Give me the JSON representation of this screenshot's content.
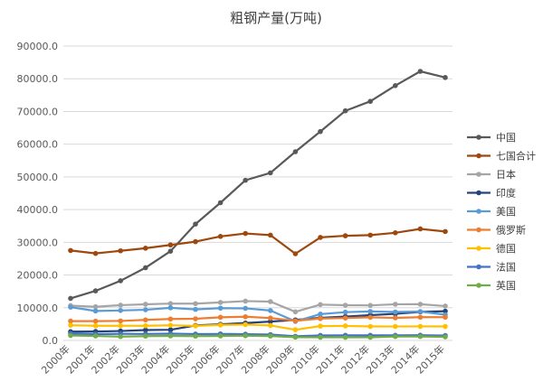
{
  "chart_data": {
    "type": "line",
    "title": "粗钢产量(万吨)",
    "x": [
      "2000年",
      "2001年",
      "2002年",
      "2003年",
      "2004年",
      "2005年",
      "2006年",
      "2007年",
      "2008年",
      "2009年",
      "2010年",
      "2011年",
      "2012年",
      "2013年",
      "2014年",
      "2015年"
    ],
    "y_ticks": [
      "0.0",
      "10000.0",
      "20000.0",
      "30000.0",
      "40000.0",
      "50000.0",
      "60000.0",
      "70000.0",
      "80000.0",
      "90000.0"
    ],
    "ylim": [
      0,
      90000
    ],
    "grid": true,
    "legend_position": "right",
    "series": [
      {
        "name": "中国",
        "color": "#595959",
        "values": [
          12850,
          15160,
          18240,
          22230,
          27280,
          35580,
          42100,
          48970,
          51230,
          57700,
          63870,
          70200,
          73100,
          77900,
          82270,
          80380
        ]
      },
      {
        "name": "七国合计",
        "color": "#9E480E",
        "values": [
          27500,
          26600,
          27400,
          28200,
          29200,
          30200,
          31800,
          32700,
          32200,
          26500,
          31500,
          32000,
          32200,
          32900,
          34100,
          33300
        ]
      },
      {
        "name": "日本",
        "color": "#A5A5A5",
        "values": [
          10640,
          10290,
          10780,
          11050,
          11270,
          11250,
          11620,
          12020,
          11870,
          8750,
          10960,
          10760,
          10720,
          11060,
          11070,
          10510
        ]
      },
      {
        "name": "印度",
        "color": "#264478",
        "values": [
          2690,
          2730,
          2880,
          3180,
          3260,
          4580,
          4930,
          5310,
          5770,
          6280,
          6900,
          7300,
          7730,
          8120,
          8730,
          8930
        ]
      },
      {
        "name": "美国",
        "color": "#5B9BD5",
        "values": [
          10180,
          9010,
          9160,
          9370,
          9970,
          9490,
          9860,
          9810,
          9140,
          5820,
          8050,
          8640,
          8870,
          8690,
          8830,
          7870
        ]
      },
      {
        "name": "俄罗斯",
        "color": "#ED7D31",
        "values": [
          5910,
          5900,
          5960,
          6280,
          6550,
          6620,
          7080,
          7240,
          6850,
          6000,
          6690,
          6850,
          7060,
          6910,
          7110,
          7110
        ]
      },
      {
        "name": "德国",
        "color": "#FFC000",
        "values": [
          4640,
          4480,
          4500,
          4480,
          4640,
          4450,
          4720,
          4850,
          4580,
          3270,
          4380,
          4430,
          4270,
          4260,
          4290,
          4270
        ]
      },
      {
        "name": "法国",
        "color": "#4472C4",
        "values": [
          2100,
          1930,
          2020,
          1980,
          2080,
          1950,
          1990,
          1920,
          1790,
          1280,
          1540,
          1570,
          1560,
          1570,
          1610,
          1500
        ]
      },
      {
        "name": "英国",
        "color": "#70AD47",
        "values": [
          1520,
          1370,
          1170,
          1310,
          1380,
          1320,
          1390,
          1430,
          1350,
          1010,
          970,
          950,
          960,
          1190,
          1210,
          1090
        ]
      }
    ]
  }
}
